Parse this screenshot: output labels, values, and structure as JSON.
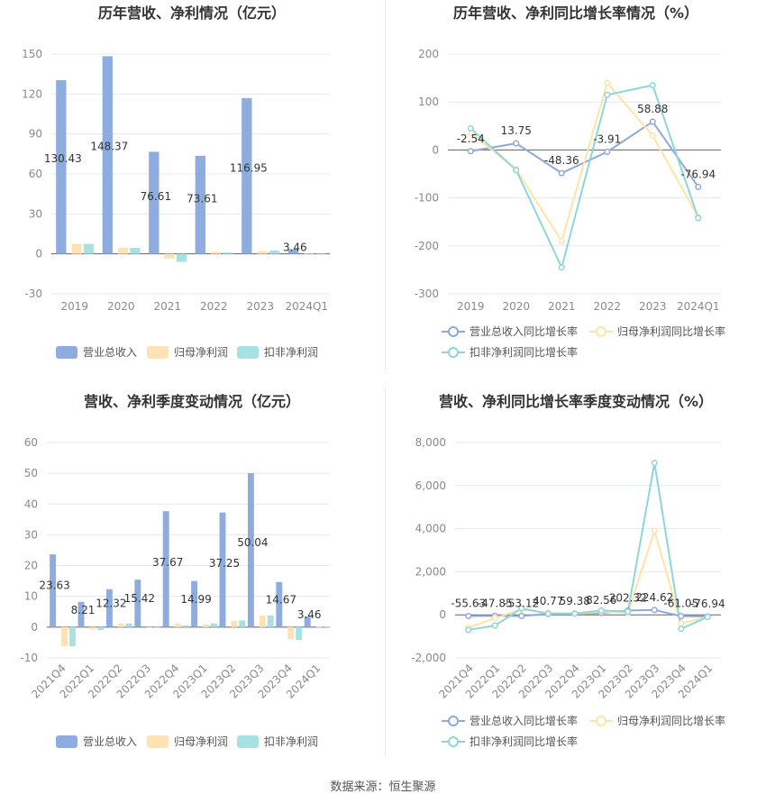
{
  "colors": {
    "revenue": "#8eadde",
    "net_profit": "#fde2b3",
    "deducted_profit": "#a9e1e3",
    "revenue_line": "#8fa9d8",
    "net_line": "#fde4a8",
    "deducted_line": "#8fd6d8"
  },
  "source_text": "数据来源：恒生聚源",
  "chart_data": [
    {
      "type": "bar",
      "title": "历年营收、净利情况（亿元）",
      "categories": [
        "2019",
        "2020",
        "2021",
        "2022",
        "2023",
        "2024Q1"
      ],
      "ylim": [
        -30,
        150
      ],
      "yticks": [
        "-30",
        "0",
        "30",
        "60",
        "90",
        "120",
        "150"
      ],
      "series": [
        {
          "name": "营业总收入",
          "values": [
            130.43,
            148.37,
            76.61,
            73.61,
            116.95,
            3.46
          ]
        },
        {
          "name": "归母净利润",
          "values": [
            7.5,
            4.5,
            -3.5,
            1.5,
            2.0,
            0.1
          ]
        },
        {
          "name": "扣非净利润",
          "values": [
            7.5,
            4.5,
            -6.0,
            1.0,
            2.5,
            0.1
          ]
        }
      ],
      "data_labels": [
        "130.43",
        "148.37",
        "76.61",
        "73.61",
        "116.95",
        "3.46"
      ],
      "legend": "bottom",
      "grid": true
    },
    {
      "type": "line",
      "title": "历年营收、净利同比增长率情况（%）",
      "categories": [
        "2019",
        "2020",
        "2021",
        "2022",
        "2023",
        "2024Q1"
      ],
      "ylim": [
        -300,
        200
      ],
      "yticks": [
        "-300",
        "-200",
        "-100",
        "0",
        "100",
        "200"
      ],
      "series": [
        {
          "name": "营业总收入同比增长率",
          "values": [
            -2.54,
            13.75,
            -48.36,
            -3.91,
            58.88,
            -76.94
          ]
        },
        {
          "name": "归母净利润同比增长率",
          "values": [
            35,
            -40,
            -190,
            140,
            30,
            -140
          ]
        },
        {
          "name": "扣非净利润同比增长率",
          "values": [
            45,
            -42,
            -245,
            115,
            135,
            -142
          ]
        }
      ],
      "data_labels": [
        "-2.54",
        "13.75",
        "-48.36",
        "-3.91",
        "58.88",
        "-76.94"
      ],
      "legend": "bottom",
      "grid": true
    },
    {
      "type": "bar",
      "title": "营收、净利季度变动情况（亿元）",
      "categories": [
        "2021Q4",
        "2022Q1",
        "2022Q2",
        "2022Q3",
        "2022Q4",
        "2023Q1",
        "2023Q2",
        "2023Q3",
        "2023Q4",
        "2024Q1"
      ],
      "ylim": [
        -10,
        60
      ],
      "yticks": [
        "-10",
        "0",
        "10",
        "20",
        "30",
        "40",
        "50",
        "60"
      ],
      "series": [
        {
          "name": "营业总收入",
          "values": [
            23.63,
            8.21,
            12.32,
            15.42,
            37.67,
            14.99,
            37.25,
            50.04,
            14.67,
            3.46
          ]
        },
        {
          "name": "归母净利润",
          "values": [
            -6.2,
            -0.8,
            1.2,
            0.0,
            1.2,
            0.9,
            2.0,
            3.8,
            -4.0,
            0.1
          ]
        },
        {
          "name": "扣非净利润",
          "values": [
            -6.2,
            -1.0,
            1.2,
            0.0,
            0.6,
            1.2,
            2.2,
            3.8,
            -4.2,
            0.1
          ]
        }
      ],
      "data_labels": [
        "23.63",
        "8.21",
        "12.32",
        "15.42",
        "37.67",
        "14.99",
        "37.25",
        "50.04",
        "14.67",
        "3.46"
      ],
      "legend": "bottom",
      "grid": true
    },
    {
      "type": "line",
      "title": "营收、净利同比增长率季度变动情况（%）",
      "categories": [
        "2021Q4",
        "2022Q1",
        "2022Q2",
        "2022Q3",
        "2022Q4",
        "2023Q1",
        "2023Q2",
        "2023Q3",
        "2023Q4",
        "2024Q1"
      ],
      "ylim": [
        -2000,
        8000
      ],
      "yticks": [
        "-2,000",
        "0",
        "2,000",
        "4,000",
        "6,000",
        "8,000"
      ],
      "series": [
        {
          "name": "营业总收入同比增长率",
          "values": [
            -55.63,
            -47.85,
            -53.12,
            40.77,
            59.38,
            82.56,
            202.32,
            224.62,
            -61.05,
            -76.94
          ]
        },
        {
          "name": "归母净利润同比增长率",
          "values": [
            -600,
            -150,
            250,
            100,
            50,
            150,
            100,
            3900,
            -400,
            -100
          ]
        },
        {
          "name": "扣非净利润同比增长率",
          "values": [
            -700,
            -500,
            300,
            50,
            60,
            200,
            150,
            7050,
            -650,
            -100
          ]
        }
      ],
      "data_labels": [
        "-55.63",
        "-47.85",
        "-53.12",
        "40.77",
        "59.38",
        "82.56",
        "202.32",
        "224.62",
        "-61.05",
        "-76.94"
      ],
      "legend": "bottom",
      "grid": true
    }
  ]
}
